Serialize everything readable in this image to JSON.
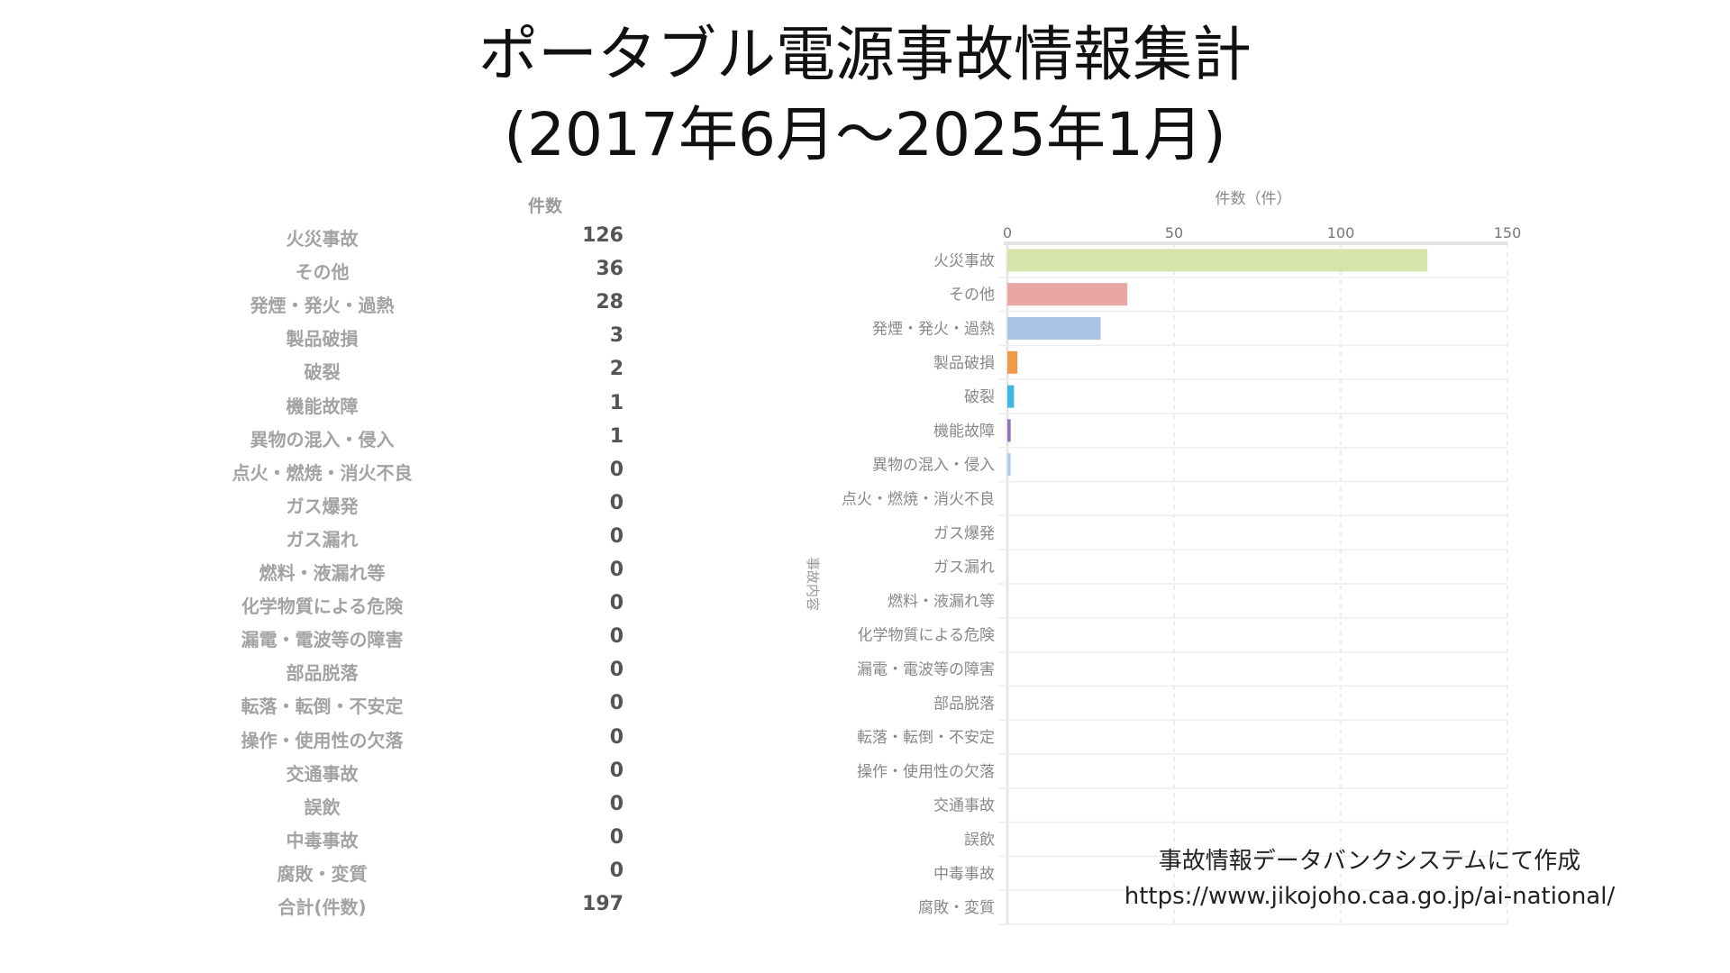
{
  "title": {
    "line1": "ポータブル電源事故情報集計",
    "line2": "(2017年6月～2025年1月)"
  },
  "table": {
    "header": "件数",
    "total_label": "合計(件数)",
    "total_value": "197"
  },
  "source": {
    "line1": "事故情報データバンクシステムにて作成",
    "line2": "https://www.jikojoho.caa.go.jp/ai-national/"
  },
  "chart_data": {
    "type": "bar",
    "orientation": "horizontal",
    "xlabel": "件数（件）",
    "ylabel": "事故内容",
    "xlim": [
      0,
      150
    ],
    "xticks": [
      0,
      50,
      100,
      150
    ],
    "grid": true,
    "categories": [
      "火災事故",
      "その他",
      "発煙・発火・過熱",
      "製品破損",
      "破裂",
      "機能故障",
      "異物の混入・侵入",
      "点火・燃焼・消火不良",
      "ガス爆発",
      "ガス漏れ",
      "燃料・液漏れ等",
      "化学物質による危険",
      "漏電・電波等の障害",
      "部品脱落",
      "転落・転倒・不安定",
      "操作・使用性の欠落",
      "交通事故",
      "誤飲",
      "中毒事故",
      "腐敗・変質"
    ],
    "values": [
      126,
      36,
      28,
      3,
      2,
      1,
      1,
      0,
      0,
      0,
      0,
      0,
      0,
      0,
      0,
      0,
      0,
      0,
      0,
      0
    ],
    "colors": [
      "#d6e4aa",
      "#e8a6a4",
      "#a7c4e5",
      "#ee9a47",
      "#40b5dd",
      "#9473bd",
      "#b5cdee",
      "#cccccc",
      "#cccccc",
      "#cccccc",
      "#cccccc",
      "#cccccc",
      "#cccccc",
      "#cccccc",
      "#cccccc",
      "#cccccc",
      "#cccccc",
      "#cccccc",
      "#cccccc",
      "#cccccc"
    ]
  }
}
